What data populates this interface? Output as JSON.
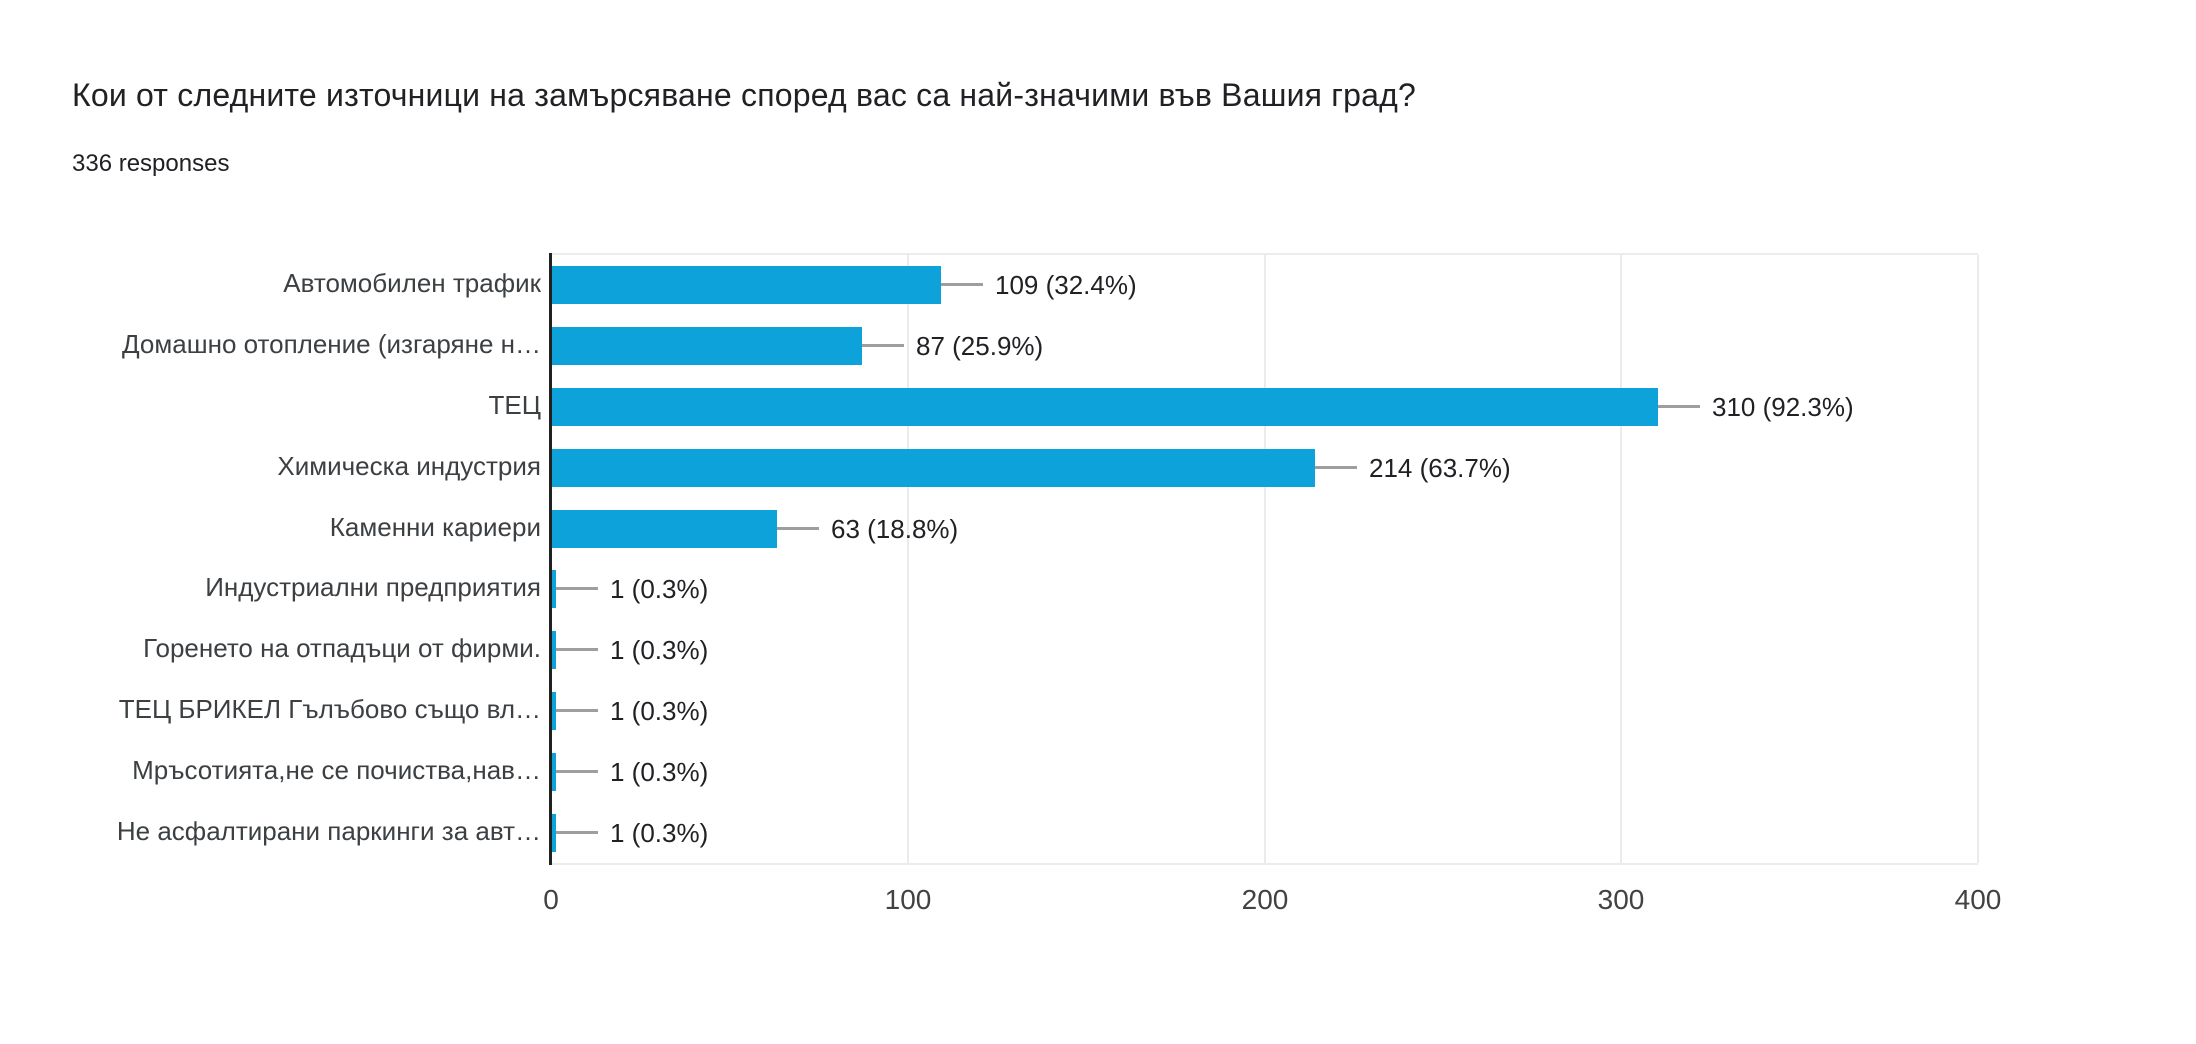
{
  "header": {
    "title": "Кои от следните източници на замърсяване според вас са най-значими във Вашия град?",
    "subtitle": "336 responses"
  },
  "chart_data": {
    "type": "bar",
    "orientation": "horizontal",
    "title": "Кои от следните източници на замърсяване според вас са най-значими във Вашия град?",
    "subtitle": "336 responses",
    "total_responses": 336,
    "categories": [
      "Автомобилен трафик",
      "Домашно отопление (изгаряне н…",
      "ТЕЦ",
      "Химическа индустрия",
      "Каменни кариери",
      "Индустриални предприятия",
      "Горенето на отпадъци от фирми.",
      "ТЕЦ БРИКЕЛ Гълъбово също вл…",
      "Мръсотията,не се почиства,нав…",
      "Не асфалтирани паркинги за авт…"
    ],
    "values": [
      109,
      87,
      310,
      214,
      63,
      1,
      1,
      1,
      1,
      1
    ],
    "value_labels": [
      "109 (32.4%)",
      "87 (25.9%)",
      "310 (92.3%)",
      "214 (63.7%)",
      "63 (18.8%)",
      "1 (0.3%)",
      "1 (0.3%)",
      "1 (0.3%)",
      "1 (0.3%)",
      "1 (0.3%)"
    ],
    "x_ticks": [
      "0",
      "100",
      "200",
      "300",
      "400"
    ],
    "xlim": [
      0,
      400
    ],
    "grid": true,
    "legend_position": "none",
    "colors": {
      "bar": "#0da2d9",
      "axis_line": "#212121",
      "gridline": "#ebebeb",
      "leader_line": "#9e9e9e",
      "title_text": "#202124",
      "category_text": "#3c4043",
      "tick_text": "#424242"
    }
  }
}
